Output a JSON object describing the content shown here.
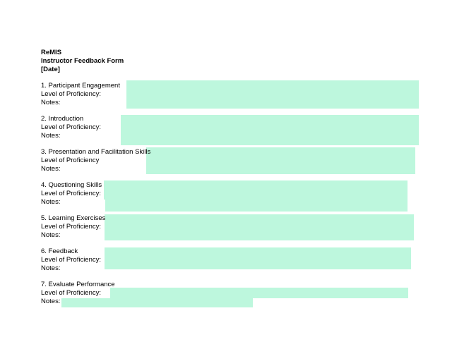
{
  "header": {
    "org": "ReMIS",
    "form_title": "Instructor Feedback Form",
    "date": "[Date]"
  },
  "labels": {
    "proficiency": "Level of Proficiency:",
    "proficiency_no_colon": "Level of Proficiency",
    "notes": "Notes:"
  },
  "sections": [
    {
      "title": "1. Participant Engagement"
    },
    {
      "title": "2. Introduction"
    },
    {
      "title": "3. Presentation and Facilitation Skills"
    },
    {
      "title": "4. Questioning Skills"
    },
    {
      "title": "5. Learning Exercises"
    },
    {
      "title": "6. Feedback"
    },
    {
      "title": "7. Evaluate Performance"
    }
  ],
  "colors": {
    "highlight": "#bdf7dd"
  }
}
